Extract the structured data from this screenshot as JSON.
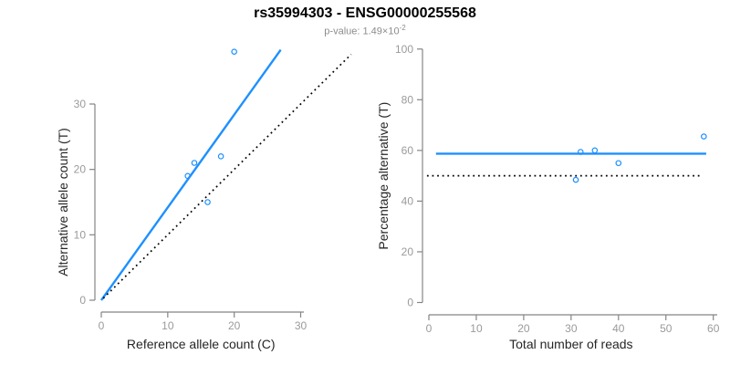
{
  "header": {
    "title": "rs35994303 - ENSG00000255568",
    "subtitle_text": "p-value: 1.49×10",
    "subtitle_exponent": "-2"
  },
  "colors": {
    "accent_blue": "#1E90FF",
    "dotted_line_black": "#000000",
    "axis_gray": "#858585",
    "tick_label_gray": "#9a9a9a",
    "axis_title_dark": "#262626",
    "title_black": "#000000",
    "subtitle_gray": "#8c8c8c",
    "background": "#ffffff"
  },
  "chart_data": [
    {
      "type": "scatter",
      "panel": "left",
      "xlabel": "Reference allele count (C)",
      "ylabel": "Alternative allele count (T)",
      "xlim": [
        0,
        30
      ],
      "ylim": [
        0,
        30
      ],
      "xticks": [
        0,
        10,
        20,
        30
      ],
      "yticks": [
        0,
        10,
        20,
        30
      ],
      "grid": false,
      "legend": null,
      "points": [
        [
          13,
          19
        ],
        [
          14,
          21
        ],
        [
          16,
          15
        ],
        [
          18,
          22
        ],
        [
          20,
          38
        ]
      ],
      "lines": [
        {
          "name": "regression-line",
          "style": "solid",
          "color": "#1E90FF",
          "x1": 0,
          "y1": 0,
          "x2": 27,
          "y2": 38.3
        },
        {
          "name": "identity-line",
          "style": "dotted",
          "color": "#000000",
          "x1": 0.3,
          "y1": 0.3,
          "x2": 37.6,
          "y2": 37.6
        }
      ]
    },
    {
      "type": "scatter",
      "panel": "right",
      "xlabel": "Total number of reads",
      "ylabel": "Percentage alternative (T)",
      "xlim": [
        0,
        60
      ],
      "ylim": [
        0,
        100
      ],
      "xticks": [
        0,
        10,
        20,
        30,
        40,
        50,
        60
      ],
      "yticks": [
        0,
        20,
        40,
        60,
        80,
        100
      ],
      "grid": false,
      "legend": null,
      "points": [
        [
          31,
          48.4
        ],
        [
          32,
          59.4
        ],
        [
          35,
          60
        ],
        [
          40,
          55
        ],
        [
          58,
          65.5
        ]
      ],
      "lines": [
        {
          "name": "mean-percentage-line",
          "style": "solid",
          "color": "#1E90FF",
          "x1": 1.5,
          "y1": 58.7,
          "x2": 58.5,
          "y2": 58.7
        },
        {
          "name": "fifty-percent-line",
          "style": "dotted",
          "color": "#000000",
          "x1": -0.4,
          "y1": 50,
          "x2": 57.5,
          "y2": 50
        }
      ]
    }
  ]
}
